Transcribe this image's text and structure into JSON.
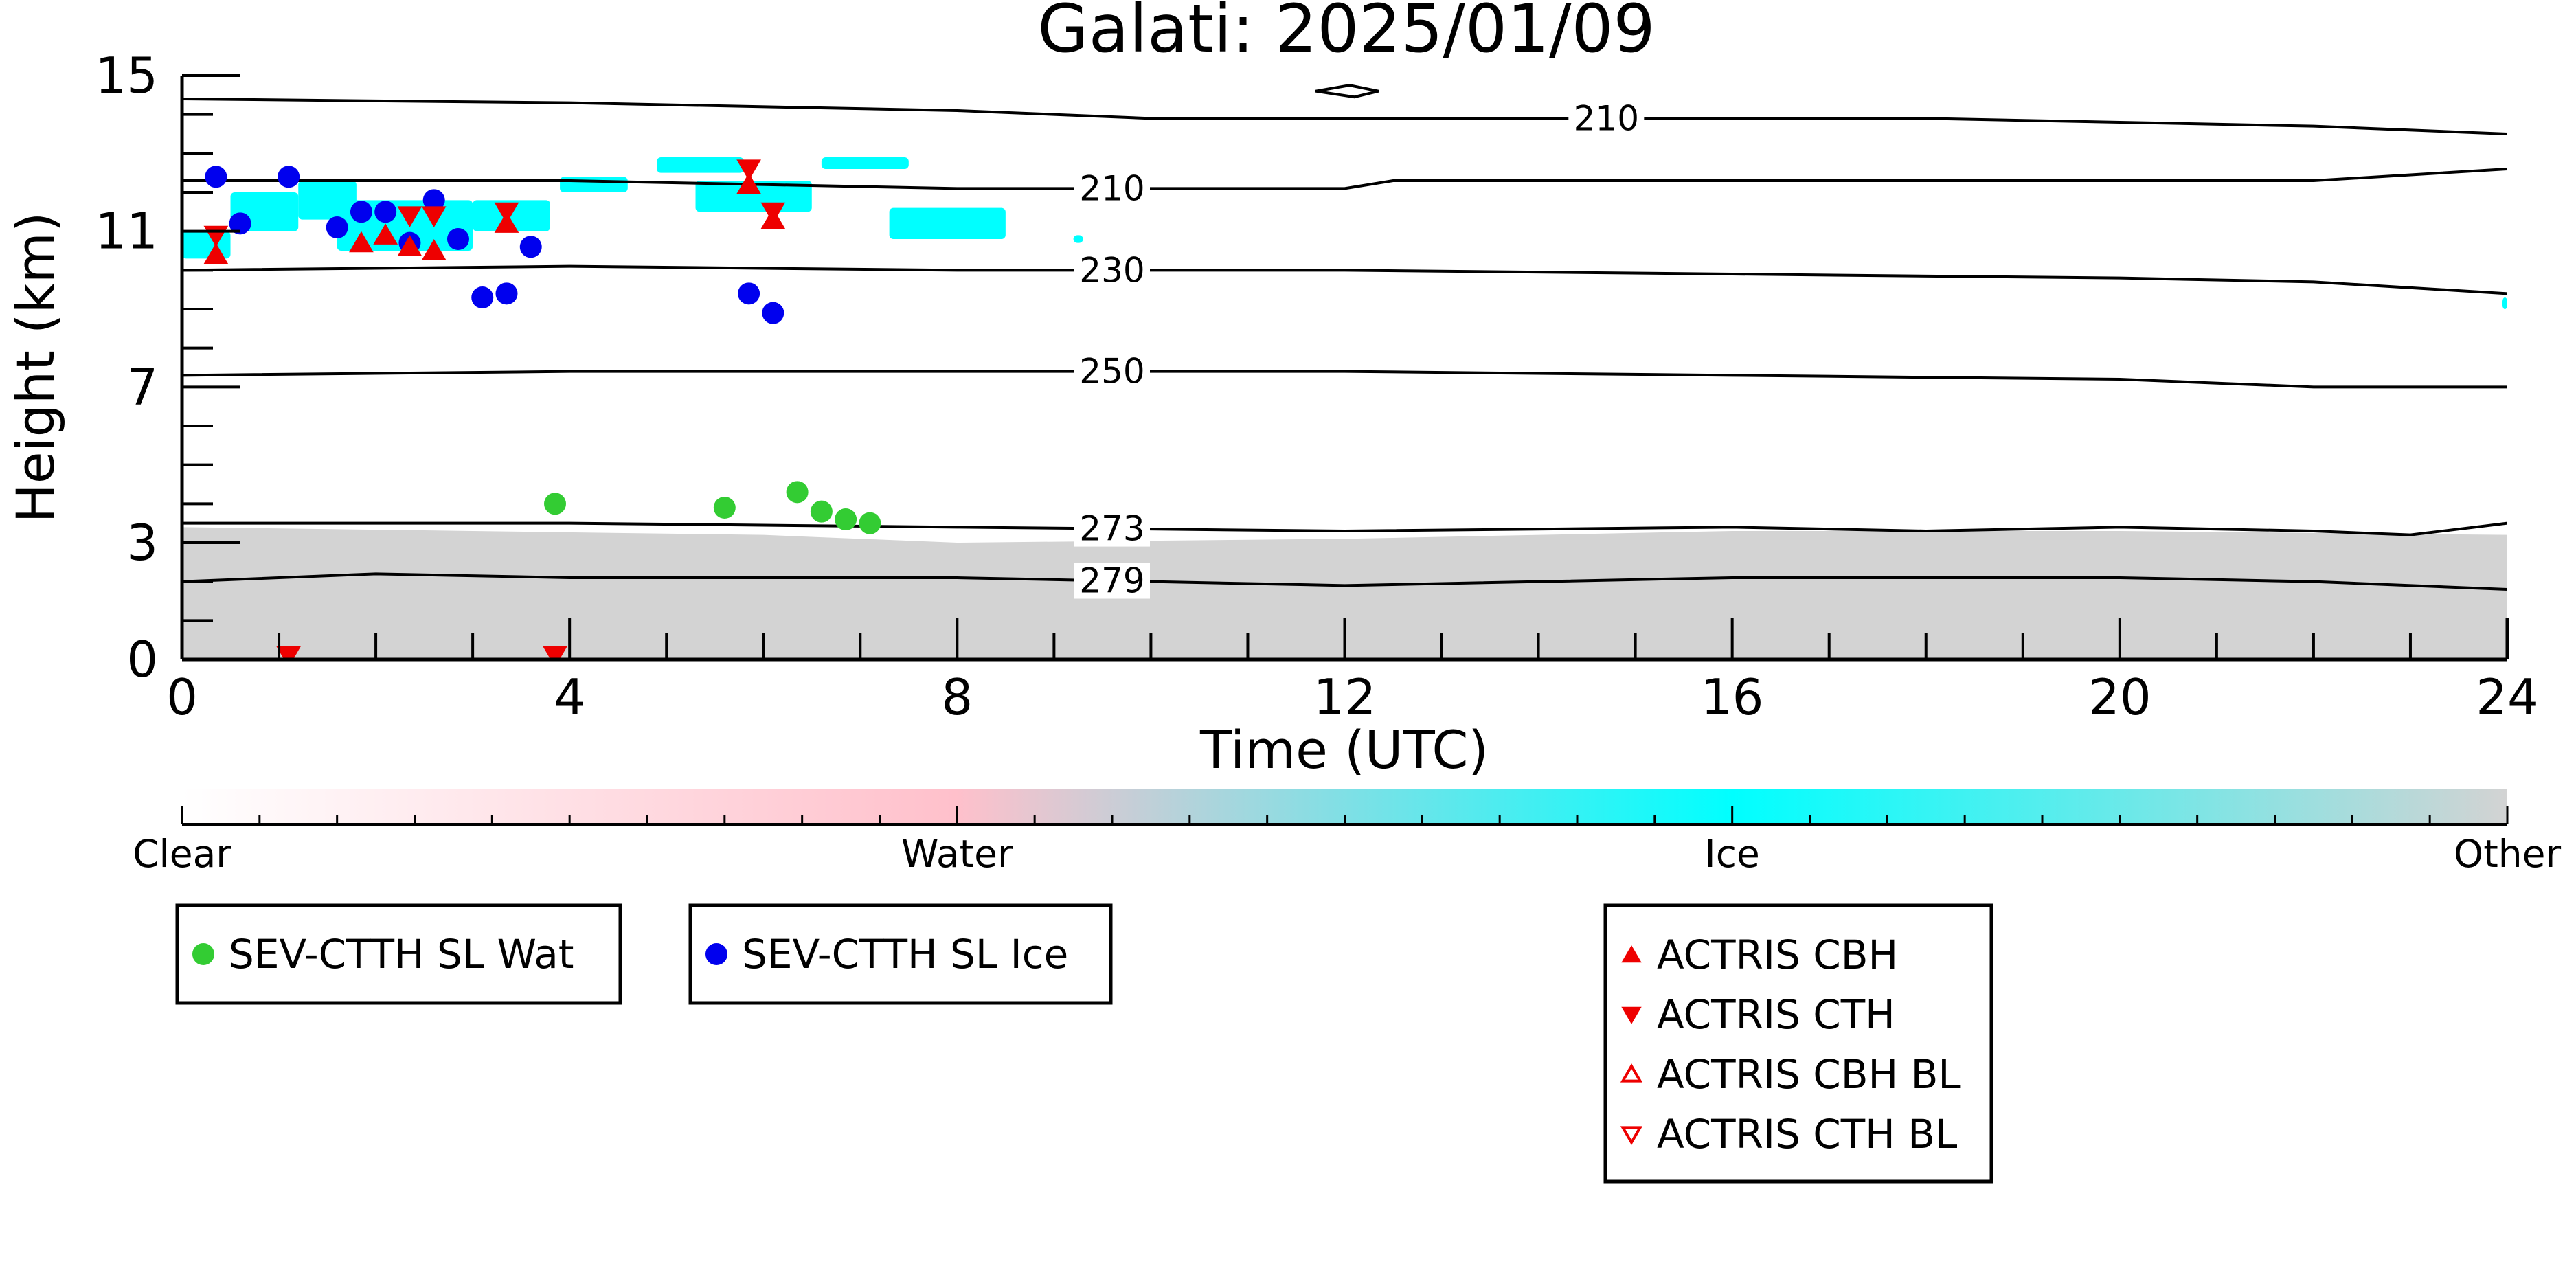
{
  "chart_data": {
    "type": "scatter",
    "title": "Galati: 2025/01/09",
    "xlabel": "Time (UTC)",
    "ylabel": "Height (km)",
    "xlim": [
      0,
      24
    ],
    "ylim": [
      0,
      15
    ],
    "xticks": [
      "0",
      "4",
      "8",
      "12",
      "16",
      "20",
      "24"
    ],
    "yticks": [
      "0",
      "3",
      "7",
      "11",
      "15"
    ],
    "grid": false,
    "colors": {
      "water_points": "#33cc33",
      "ice_points": "#0000ee",
      "actris": "#ee0000",
      "cloud_ice": "#00ffff",
      "cloud_other": "#d3d3d3",
      "cloud_water": "#ffc0cb"
    },
    "colorbar": {
      "labels": [
        "Clear",
        "Water",
        "Ice",
        "Other"
      ],
      "stops": [
        {
          "color": "#ffffff",
          "pos": 0.0
        },
        {
          "color": "#ffc0cb",
          "pos": 0.333
        },
        {
          "color": "#00ffff",
          "pos": 0.667
        },
        {
          "color": "#d3d3d3",
          "pos": 1.0
        }
      ]
    },
    "temperature_contours": [
      {
        "label": "210",
        "label_x": 14.7,
        "x": [
          0,
          4,
          8,
          10,
          12,
          14,
          16,
          18,
          20,
          22,
          24
        ],
        "y": [
          14.4,
          14.3,
          14.1,
          13.9,
          13.9,
          13.9,
          13.9,
          13.9,
          13.8,
          13.7,
          13.5
        ]
      },
      {
        "label": "210",
        "label_x": 9.6,
        "x": [
          0,
          4,
          8,
          10,
          12,
          12.5,
          14,
          16,
          18,
          20,
          22,
          24
        ],
        "y": [
          12.3,
          12.3,
          12.1,
          12.1,
          12.1,
          12.3,
          12.3,
          12.3,
          12.3,
          12.3,
          12.3,
          12.6
        ]
      },
      {
        "label": "230",
        "label_x": 9.6,
        "x": [
          0,
          4,
          8,
          12,
          16,
          20,
          22,
          24
        ],
        "y": [
          10.0,
          10.1,
          10.0,
          10.0,
          9.9,
          9.8,
          9.7,
          9.4
        ]
      },
      {
        "label": "250",
        "label_x": 9.6,
        "x": [
          0,
          4,
          8,
          12,
          16,
          20,
          22,
          24
        ],
        "y": [
          7.3,
          7.4,
          7.4,
          7.4,
          7.3,
          7.2,
          7.0,
          7.0
        ]
      },
      {
        "label": "273",
        "label_x": 9.6,
        "x": [
          0,
          4,
          8,
          12,
          16,
          18,
          20,
          22,
          23,
          24
        ],
        "y": [
          3.5,
          3.5,
          3.4,
          3.3,
          3.4,
          3.3,
          3.4,
          3.3,
          3.2,
          3.5
        ]
      },
      {
        "label": "279",
        "label_x": 9.6,
        "x": [
          0,
          2,
          4,
          8,
          12,
          16,
          20,
          22,
          24
        ],
        "y": [
          2.0,
          2.2,
          2.1,
          2.1,
          1.9,
          2.1,
          2.1,
          2.0,
          1.8
        ]
      }
    ],
    "series": [
      {
        "name": "SEV-CTTH SL Wat",
        "marker": "circle",
        "color": "#33cc33",
        "x": [
          3.85,
          5.6,
          6.35,
          6.6,
          6.85,
          7.1
        ],
        "y": [
          4.0,
          3.9,
          4.3,
          3.8,
          3.6,
          3.5
        ]
      },
      {
        "name": "SEV-CTTH SL Ice",
        "marker": "circle",
        "color": "#0000ee",
        "x": [
          0.35,
          0.6,
          1.1,
          1.6,
          1.85,
          2.1,
          2.35,
          2.6,
          2.85,
          3.1,
          3.35,
          3.6,
          5.85,
          6.1
        ],
        "y": [
          12.4,
          11.2,
          12.4,
          11.1,
          11.5,
          11.5,
          10.7,
          11.8,
          10.8,
          9.3,
          9.4,
          10.6,
          9.4,
          8.9
        ]
      },
      {
        "name": "ACTRIS CBH",
        "marker": "triangle-up",
        "color": "#ee0000",
        "x": [
          0.35,
          1.85,
          2.1,
          2.35,
          2.6,
          3.35,
          5.85,
          6.1,
          1.1,
          3.85
        ],
        "y": [
          10.4,
          10.7,
          10.9,
          10.6,
          10.5,
          11.2,
          12.2,
          11.3,
          0.0,
          0.0
        ]
      },
      {
        "name": "ACTRIS CTH",
        "marker": "triangle-down",
        "color": "#ee0000",
        "x": [
          0.35,
          2.35,
          2.6,
          3.35,
          5.85,
          6.1,
          1.1,
          3.85
        ],
        "y": [
          10.9,
          11.4,
          11.4,
          11.5,
          12.6,
          11.5,
          0.1,
          0.1
        ]
      },
      {
        "name": "ACTRIS CBH BL",
        "marker": "triangle-up-open",
        "color": "#ee0000",
        "x": [],
        "y": []
      },
      {
        "name": "ACTRIS CTH BL",
        "marker": "triangle-down-open",
        "color": "#ee0000",
        "x": [],
        "y": []
      }
    ],
    "cloud_mask": {
      "ice_patches": [
        {
          "x0": 0.0,
          "x1": 0.5,
          "y0": 10.3,
          "y1": 11.0
        },
        {
          "x0": 0.5,
          "x1": 1.2,
          "y0": 11.0,
          "y1": 12.0
        },
        {
          "x0": 1.2,
          "x1": 1.8,
          "y0": 11.3,
          "y1": 12.3
        },
        {
          "x0": 1.6,
          "x1": 3.0,
          "y0": 10.5,
          "y1": 11.8
        },
        {
          "x0": 3.0,
          "x1": 3.8,
          "y0": 11.0,
          "y1": 11.8
        },
        {
          "x0": 3.9,
          "x1": 4.6,
          "y0": 12.0,
          "y1": 12.4
        },
        {
          "x0": 4.9,
          "x1": 5.8,
          "y0": 12.5,
          "y1": 12.9
        },
        {
          "x0": 5.3,
          "x1": 6.5,
          "y0": 11.5,
          "y1": 12.3
        },
        {
          "x0": 6.6,
          "x1": 7.5,
          "y0": 12.6,
          "y1": 12.9
        },
        {
          "x0": 7.3,
          "x1": 8.5,
          "y0": 10.8,
          "y1": 11.6
        },
        {
          "x0": 9.2,
          "x1": 9.3,
          "y0": 10.7,
          "y1": 10.9
        },
        {
          "x0": 23.95,
          "x1": 24.0,
          "y0": 9.0,
          "y1": 9.3
        }
      ],
      "other_top": [
        {
          "x": 0,
          "y": 3.4
        },
        {
          "x": 3,
          "y": 3.3
        },
        {
          "x": 6,
          "y": 3.2
        },
        {
          "x": 8,
          "y": 3.0
        },
        {
          "x": 12,
          "y": 3.1
        },
        {
          "x": 16,
          "y": 3.3
        },
        {
          "x": 20,
          "y": 3.3
        },
        {
          "x": 24,
          "y": 3.2
        }
      ]
    },
    "legend": [
      {
        "label": "SEV-CTTH SL Wat"
      },
      {
        "label": "SEV-CTTH SL Ice"
      },
      {
        "label": "ACTRIS CBH"
      },
      {
        "label": "ACTRIS CTH"
      },
      {
        "label": "ACTRIS CBH BL"
      },
      {
        "label": "ACTRIS CTH BL"
      }
    ]
  }
}
